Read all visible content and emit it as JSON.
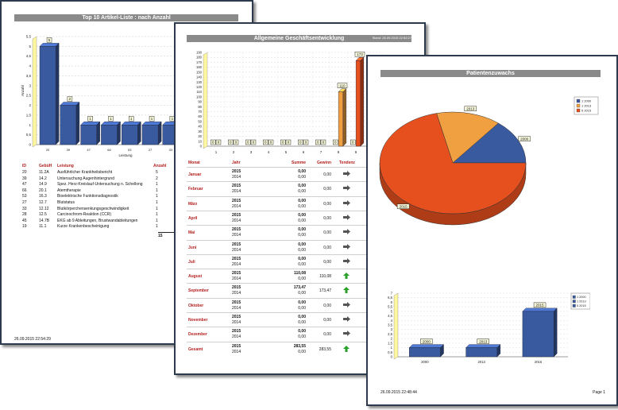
{
  "page1": {
    "title": "Top 10 Artikel-Liste : nach Anzahl",
    "y_axis_label": "Anzahl",
    "x_axis_label": "Leistung",
    "table_headers": [
      "ID",
      "GebüH",
      "Leistung",
      "Anzahl"
    ],
    "rows": [
      {
        "id": "20",
        "geb": "11.2A",
        "leistung": "Ausführlicher Krankheitsbericht",
        "anzahl": "5"
      },
      {
        "id": "39",
        "geb": "14.2",
        "leistung": "Untersuchung Augenhintergrund",
        "anzahl": "2"
      },
      {
        "id": "47",
        "geb": "14.9",
        "leistung": "Spez. Herz-Kreislauf-Untersuchung n. Schellong",
        "anzahl": "1"
      },
      {
        "id": "66",
        "geb": "20.1",
        "leistung": "Atemtherapie",
        "anzahl": "1"
      },
      {
        "id": "53",
        "geb": "16.3",
        "leistung": "Bioelektrische Funktionsdiagnostik",
        "anzahl": "1"
      },
      {
        "id": "27",
        "geb": "12.7",
        "leistung": "Blutstatus",
        "anzahl": "1"
      },
      {
        "id": "33",
        "geb": "12.12",
        "leistung": "Blutkörperchensenkungsgeschwindigkeit",
        "anzahl": "1"
      },
      {
        "id": "28",
        "geb": "12.5",
        "leistung": "Carcinochrom-Reaktion (CCR)",
        "anzahl": "1"
      },
      {
        "id": "45",
        "geb": "14.7B",
        "leistung": "EKG ab 9 Ableitungen, Brustwandableitungen",
        "anzahl": "1"
      },
      {
        "id": "19",
        "geb": "11.1",
        "leistung": "Kurze Krankenbescheinigung",
        "anzahl": "1"
      }
    ],
    "total": "15",
    "footer_timestamp": "26.09.2015 22:54:29"
  },
  "page2": {
    "title": "Allgemeine Geschäftsentwicklung",
    "header_right": "Stand: 26.09.2015 22:52:27",
    "table_headers": [
      "Monat",
      "Jahr",
      "Summe",
      "Gewinn",
      "Tendenz"
    ],
    "months": [
      {
        "name": "Januar",
        "y1": "2015",
        "y2": "2014",
        "s1": "0,00",
        "s2": "0,00",
        "gewinn": "0,00",
        "trend": "flat"
      },
      {
        "name": "Februar",
        "y1": "2015",
        "y2": "2014",
        "s1": "0,00",
        "s2": "0,00",
        "gewinn": "0,00",
        "trend": "flat"
      },
      {
        "name": "März",
        "y1": "2015",
        "y2": "2014",
        "s1": "0,00",
        "s2": "0,00",
        "gewinn": "0,00",
        "trend": "flat"
      },
      {
        "name": "April",
        "y1": "2015",
        "y2": "2014",
        "s1": "0,00",
        "s2": "0,00",
        "gewinn": "0,00",
        "trend": "flat"
      },
      {
        "name": "Mai",
        "y1": "2015",
        "y2": "2014",
        "s1": "0,00",
        "s2": "0,00",
        "gewinn": "0,00",
        "trend": "flat"
      },
      {
        "name": "Juni",
        "y1": "2015",
        "y2": "2014",
        "s1": "0,00",
        "s2": "0,00",
        "gewinn": "0,00",
        "trend": "flat"
      },
      {
        "name": "Juli",
        "y1": "2015",
        "y2": "2014",
        "s1": "0,00",
        "s2": "0,00",
        "gewinn": "0,00",
        "trend": "flat"
      },
      {
        "name": "August",
        "y1": "2015",
        "y2": "2014",
        "s1": "110,08",
        "s2": "0,00",
        "gewinn": "110,08",
        "trend": "up"
      },
      {
        "name": "September",
        "y1": "2015",
        "y2": "2014",
        "s1": "173,47",
        "s2": "0,00",
        "gewinn": "173,47",
        "trend": "up"
      },
      {
        "name": "Oktober",
        "y1": "2015",
        "y2": "2014",
        "s1": "0,00",
        "s2": "0,00",
        "gewinn": "0,00",
        "trend": "flat"
      },
      {
        "name": "November",
        "y1": "2015",
        "y2": "2014",
        "s1": "0,00",
        "s2": "0,00",
        "gewinn": "0,00",
        "trend": "flat"
      },
      {
        "name": "Dezember",
        "y1": "2015",
        "y2": "2014",
        "s1": "0,00",
        "s2": "0,00",
        "gewinn": "0,00",
        "trend": "flat"
      },
      {
        "name": "Gesamt",
        "y1": "2015",
        "y2": "2014",
        "s1": "283,55",
        "s2": "0,00",
        "gewinn": "283,55",
        "trend": "up"
      }
    ]
  },
  "page3": {
    "title": "Patientenzuwachs",
    "pie_labels": [
      "2013",
      "2000",
      "2015"
    ],
    "legend": [
      "1 2000",
      "1 2013",
      "5 2015"
    ],
    "footer_timestamp": "26.09.2015 22:48:44",
    "footer_page": "Page 1"
  },
  "colors": {
    "blue": "#3a5aa0",
    "orange_light": "#f0a040",
    "orange_dark": "#e6501e",
    "title_bar": "#8a8a8a",
    "month_red": "#b41e1e",
    "trend_up": "#2aa02a",
    "trend_flat": "#555555"
  },
  "chart_data": [
    {
      "type": "bar",
      "title": "Top 10 Artikel-Liste : nach Anzahl",
      "ylabel": "Anzahl",
      "xlabel": "Leistung",
      "ylim": [
        0,
        5.5
      ],
      "categories": [
        "20",
        "39",
        "47",
        "66",
        "53",
        "27",
        "33",
        "28",
        "45",
        "19"
      ],
      "values": [
        5,
        2,
        1,
        1,
        1,
        1,
        1,
        1,
        1,
        1
      ]
    },
    {
      "type": "bar",
      "title": "Allgemeine Geschäftsentwicklung",
      "ylim": [
        0,
        190
      ],
      "categories": [
        "1",
        "2",
        "3",
        "4",
        "5",
        "6",
        "7",
        "8",
        "9",
        "10"
      ],
      "series": [
        {
          "values": [
            0,
            0,
            0,
            0,
            0,
            0,
            0,
            0,
            0,
            0
          ]
        },
        {
          "values": [
            0,
            0,
            0,
            0,
            0,
            0,
            0,
            110.08,
            173.47,
            0
          ]
        }
      ]
    },
    {
      "type": "pie",
      "title": "Patientenzuwachs",
      "categories": [
        "2000",
        "2013",
        "2015"
      ],
      "values": [
        1,
        1,
        5
      ]
    },
    {
      "type": "bar",
      "title": "Patientenzuwachs",
      "ylim": [
        0,
        7
      ],
      "categories": [
        "2000",
        "2013",
        "2015"
      ],
      "values": [
        1,
        1,
        5
      ]
    }
  ]
}
